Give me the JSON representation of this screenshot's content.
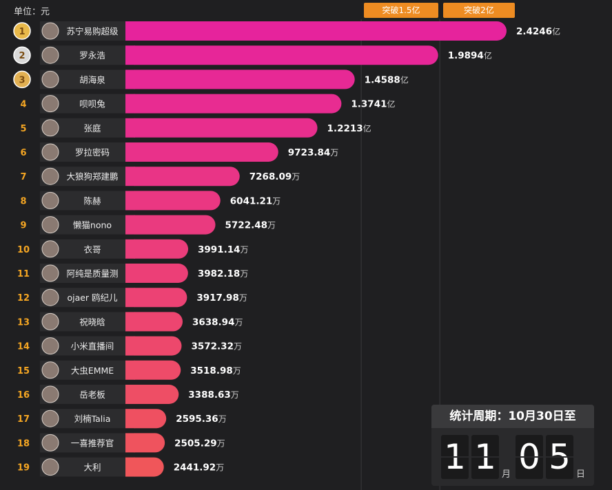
{
  "unit_label": "单位：元",
  "badges": [
    "突破1.5亿",
    "突破2亿"
  ],
  "period": {
    "title": "统计周期：10月30日至",
    "month": "11",
    "month_unit": "月",
    "day": "05",
    "day_unit": "日"
  },
  "colors": {
    "background": "#1f1f21",
    "bar_top": "#e6239c",
    "bar_bottom": "#f0565a",
    "badge": "#ee8c22"
  },
  "chart_data": {
    "type": "bar",
    "orientation": "horizontal",
    "unit": "元",
    "thresholds": [
      {
        "label": "突破1.5亿",
        "value": 150000000
      },
      {
        "label": "突破2亿",
        "value": 200000000
      }
    ],
    "rows": [
      {
        "rank": "1",
        "name": "苏宁易购超级",
        "value": 242460000,
        "label_num": "2.4246",
        "label_unit": "亿",
        "medal": "gold"
      },
      {
        "rank": "2",
        "name": "罗永浩",
        "value": 198940000,
        "label_num": "1.9894",
        "label_unit": "亿",
        "medal": "silver"
      },
      {
        "rank": "3",
        "name": "胡海泉",
        "value": 145880000,
        "label_num": "1.4588",
        "label_unit": "亿",
        "medal": "bronze"
      },
      {
        "rank": "4",
        "name": "呗呗兔",
        "value": 137410000,
        "label_num": "1.3741",
        "label_unit": "亿"
      },
      {
        "rank": "5",
        "name": "张庭",
        "value": 122130000,
        "label_num": "1.2213",
        "label_unit": "亿"
      },
      {
        "rank": "6",
        "name": "罗拉密码",
        "value": 97238400,
        "label_num": "9723.84",
        "label_unit": "万"
      },
      {
        "rank": "7",
        "name": "大狼狗郑建鹏",
        "value": 72680900,
        "label_num": "7268.09",
        "label_unit": "万"
      },
      {
        "rank": "8",
        "name": "陈赫",
        "value": 60412100,
        "label_num": "6041.21",
        "label_unit": "万"
      },
      {
        "rank": "9",
        "name": "懒猫nono",
        "value": 57224800,
        "label_num": "5722.48",
        "label_unit": "万"
      },
      {
        "rank": "10",
        "name": "衣哥",
        "value": 39911400,
        "label_num": "3991.14",
        "label_unit": "万"
      },
      {
        "rank": "11",
        "name": "阿纯是质量测",
        "value": 39821800,
        "label_num": "3982.18",
        "label_unit": "万"
      },
      {
        "rank": "12",
        "name": "ojaer 鸥纪儿",
        "value": 39179800,
        "label_num": "3917.98",
        "label_unit": "万"
      },
      {
        "rank": "13",
        "name": "祝晓晗",
        "value": 36389400,
        "label_num": "3638.94",
        "label_unit": "万"
      },
      {
        "rank": "14",
        "name": "小米直播间",
        "value": 35723200,
        "label_num": "3572.32",
        "label_unit": "万"
      },
      {
        "rank": "15",
        "name": "大虫EMME",
        "value": 35189800,
        "label_num": "3518.98",
        "label_unit": "万"
      },
      {
        "rank": "16",
        "name": "岳老板",
        "value": 33886300,
        "label_num": "3388.63",
        "label_unit": "万"
      },
      {
        "rank": "17",
        "name": "刘楠Talia",
        "value": 25953600,
        "label_num": "2595.36",
        "label_unit": "万"
      },
      {
        "rank": "18",
        "name": "一喜推荐官",
        "value": 25052900,
        "label_num": "2505.29",
        "label_unit": "万"
      },
      {
        "rank": "19",
        "name": "大利",
        "value": 24419200,
        "label_num": "2441.92",
        "label_unit": "万"
      }
    ]
  }
}
